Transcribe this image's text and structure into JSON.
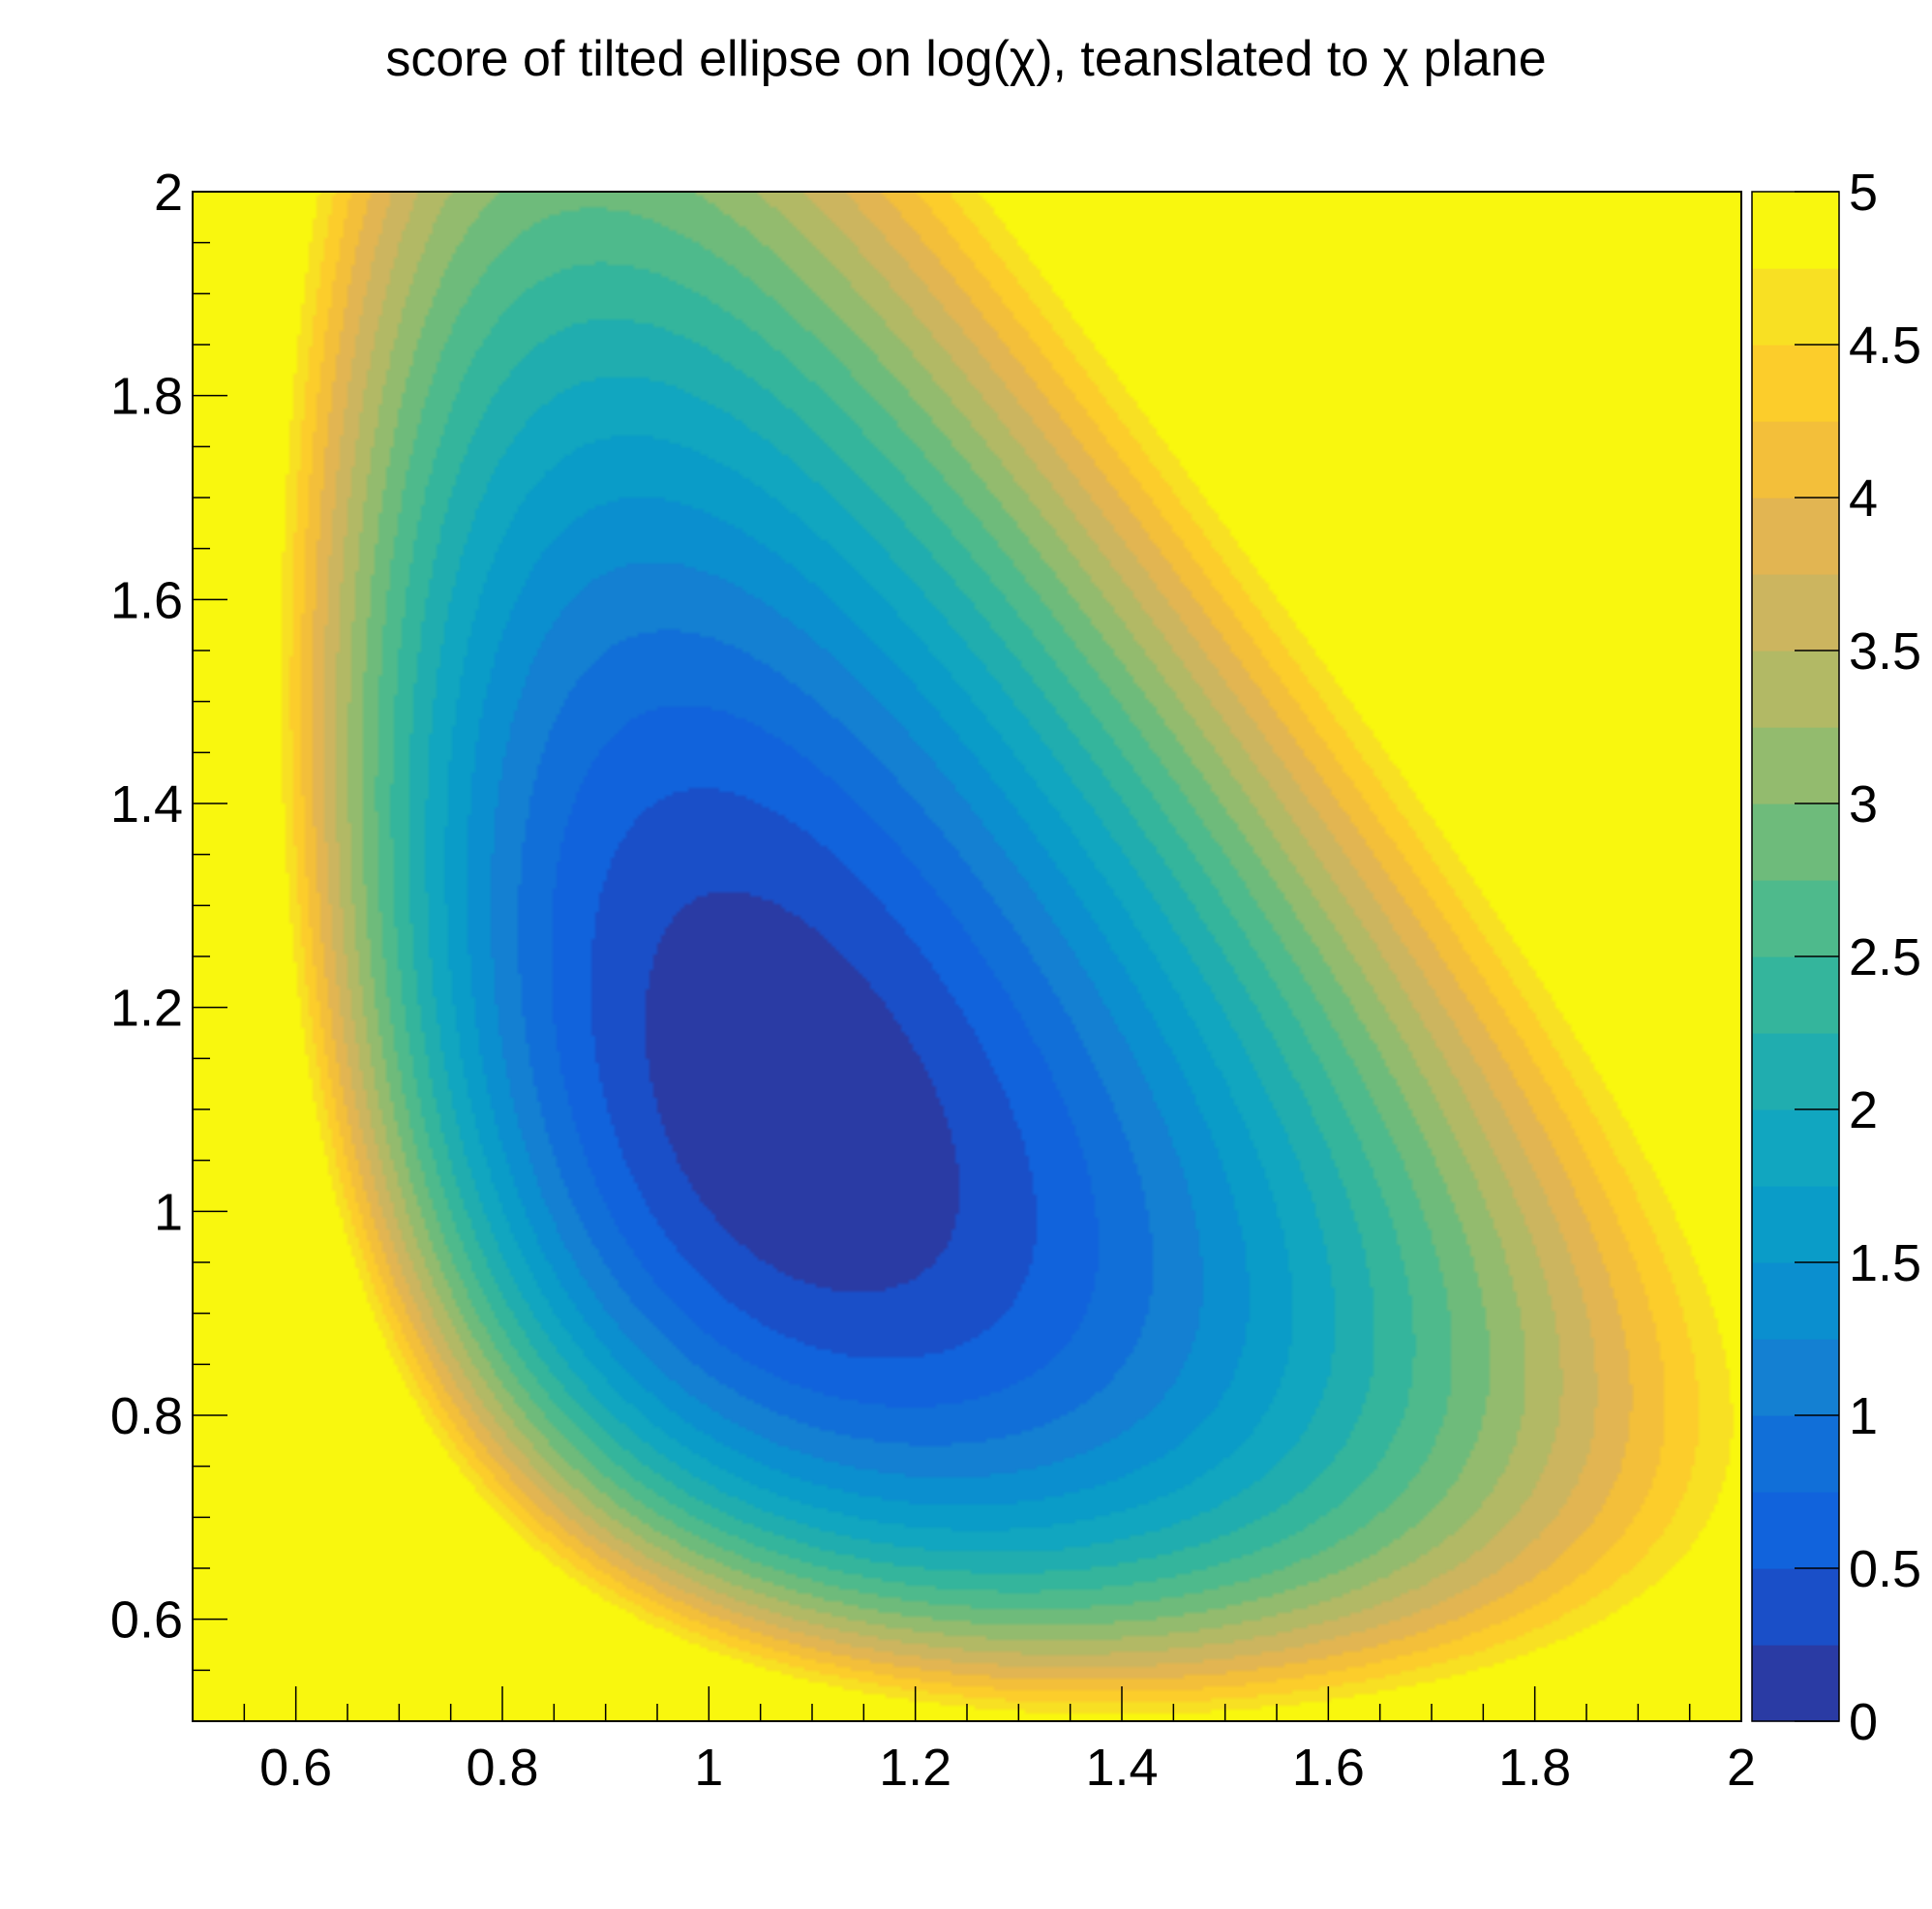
{
  "chart_data": {
    "type": "heatmap",
    "subtype": "filled-contour",
    "title": "score of tilted ellipse on log(χ), teanslated to χ plane",
    "xlabel": "",
    "ylabel": "",
    "xlim": [
      0.5,
      2.0
    ],
    "ylim": [
      0.5,
      2.0
    ],
    "zlim": [
      0,
      5
    ],
    "x_ticks": [
      "0.6",
      "0.8",
      "1",
      "1.2",
      "1.4",
      "1.6",
      "1.8",
      "2"
    ],
    "y_ticks": [
      "0.6",
      "0.8",
      "1",
      "1.2",
      "1.4",
      "1.6",
      "1.8",
      "2"
    ],
    "z_ticks": [
      "0",
      "0.5",
      "1",
      "1.5",
      "2",
      "2.5",
      "3",
      "3.5",
      "4",
      "4.5",
      "5"
    ],
    "contour_levels": 20,
    "minimum": {
      "x": 1.08,
      "y": 1.1,
      "z": 0
    },
    "palette": "kBird",
    "colorbar": "right",
    "grid": false,
    "level_colors": [
      "#2a3ba4",
      "#1a4fc8",
      "#1163dc",
      "#116fd8",
      "#1480d2",
      "#0b8fcf",
      "#0a9cc8",
      "#11a6c0",
      "#20adaf",
      "#34b59c",
      "#4eba8c",
      "#6ebb7b",
      "#93bb6e",
      "#b2b965",
      "#ccb55f",
      "#e2b552",
      "#f3bf3a",
      "#fccd2b",
      "#f8e023",
      "#f9f70e"
    ]
  }
}
